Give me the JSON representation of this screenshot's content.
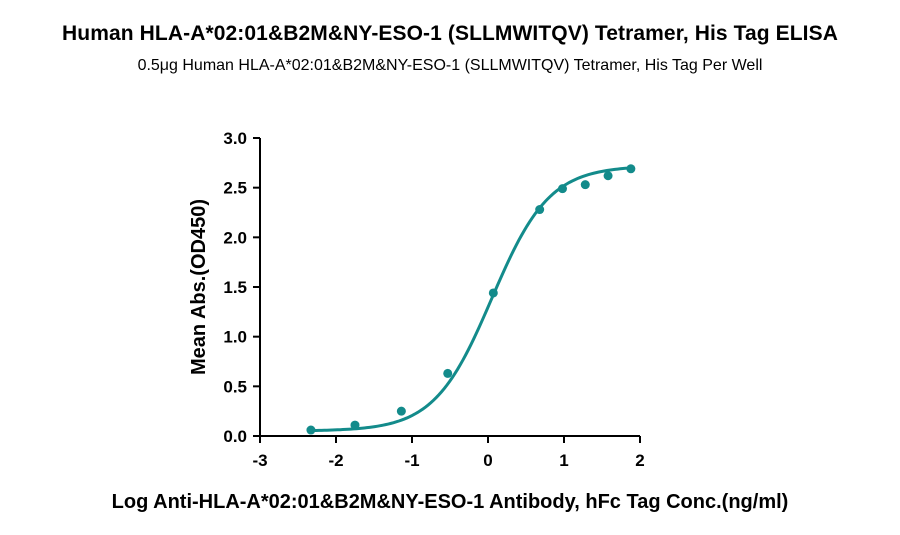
{
  "chart_data": {
    "type": "scatter",
    "title": "Human HLA-A*02:01&B2M&NY-ESO-1 (SLLMWITQV) Tetramer, His Tag ELISA",
    "subtitle": "0.5μg Human HLA-A*02:01&B2M&NY-ESO-1 (SLLMWITQV) Tetramer, His Tag Per Well",
    "xlabel": "Log Anti-HLA-A*02:01&B2M&NY-ESO-1 Antibody, hFc Tag Conc.(ng/ml)",
    "ylabel": "Mean Abs.(OD450)",
    "xlim": [
      -3,
      2
    ],
    "ylim": [
      0,
      3
    ],
    "x_ticks": [
      -3,
      -2,
      -1,
      0,
      1,
      2
    ],
    "y_ticks": [
      0.0,
      0.5,
      1.0,
      1.5,
      2.0,
      2.5,
      3.0
    ],
    "x_tick_labels": [
      "-3",
      "-2",
      "-1",
      "0",
      "1",
      "2"
    ],
    "y_tick_labels": [
      "0.0",
      "0.5",
      "1.0",
      "1.5",
      "2.0",
      "2.5",
      "3.0"
    ],
    "grid": false,
    "series": [
      {
        "points": [
          {
            "x": -2.33,
            "y": 0.06
          },
          {
            "x": -1.75,
            "y": 0.11
          },
          {
            "x": -1.14,
            "y": 0.25
          },
          {
            "x": -0.53,
            "y": 0.63
          },
          {
            "x": 0.07,
            "y": 1.44
          },
          {
            "x": 0.68,
            "y": 2.28
          },
          {
            "x": 0.98,
            "y": 2.49
          },
          {
            "x": 1.28,
            "y": 2.53
          },
          {
            "x": 1.58,
            "y": 2.62
          },
          {
            "x": 1.88,
            "y": 2.69
          }
        ],
        "fit_curve": "4PL",
        "color": "#138b8b"
      }
    ]
  }
}
